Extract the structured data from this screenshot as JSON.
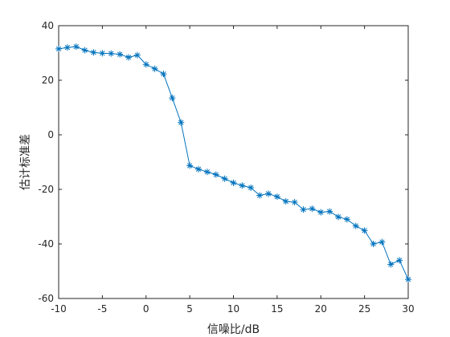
{
  "chart_data": {
    "type": "line",
    "xlabel": "信噪比/dB",
    "ylabel": "估计标准差",
    "xlim": [
      -10,
      30
    ],
    "ylim": [
      -60,
      40
    ],
    "xticks": [
      -10,
      -5,
      0,
      5,
      10,
      15,
      20,
      25,
      30
    ],
    "yticks": [
      -60,
      -40,
      -20,
      0,
      20,
      40
    ],
    "grid": true,
    "marker": "asterisk",
    "color": "#0072BD",
    "x": [
      -10,
      -9,
      -8,
      -7,
      -6,
      -5,
      -4,
      -3,
      -2,
      -1,
      0,
      1,
      2,
      3,
      4,
      5,
      6,
      7,
      8,
      9,
      10,
      11,
      12,
      13,
      14,
      15,
      16,
      17,
      18,
      19,
      20,
      21,
      22,
      23,
      24,
      25,
      26,
      27,
      28,
      29,
      30
    ],
    "series": [
      {
        "values": [
          31.5,
          32.0,
          32.3,
          31.0,
          30.2,
          29.9,
          29.8,
          29.5,
          28.4,
          29.2,
          25.8,
          24.2,
          22.3,
          13.5,
          4.5,
          -11.3,
          -12.6,
          -13.6,
          -14.6,
          -16.1,
          -17.6,
          -18.6,
          -19.4,
          -22.2,
          -21.6,
          -22.7,
          -24.4,
          -24.7,
          -27.4,
          -27.1,
          -28.4,
          -28.1,
          -30.1,
          -31.0,
          -33.4,
          -35.1,
          -40.0,
          -39.3,
          -47.5,
          -46.0,
          -53.0
        ]
      }
    ]
  }
}
